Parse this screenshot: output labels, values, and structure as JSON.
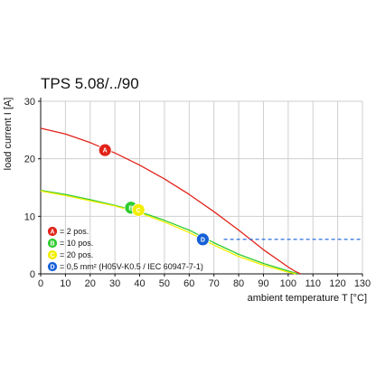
{
  "chart_data": {
    "type": "line",
    "title": "TPS 5.08/../90",
    "xlabel": "ambient temperature T [°C]",
    "ylabel": "load current I [A]",
    "xlim": [
      0,
      130
    ],
    "ylim": [
      0,
      30
    ],
    "xticks": [
      0,
      10,
      20,
      30,
      40,
      50,
      60,
      70,
      80,
      90,
      100,
      110,
      120,
      130
    ],
    "yticks": [
      0,
      10,
      20,
      30
    ],
    "grid": true,
    "series": [
      {
        "name": "2 pos.",
        "marker": "A",
        "color": "#e2231a",
        "x": [
          0,
          10,
          20,
          30,
          40,
          50,
          60,
          70,
          80,
          90,
          100,
          103,
          105
        ],
        "y": [
          25.3,
          24.3,
          22.8,
          21.0,
          18.9,
          16.5,
          13.8,
          10.8,
          7.6,
          4.2,
          1.2,
          0.4,
          0
        ]
      },
      {
        "name": "10 pos.",
        "marker": "B",
        "color": "#2ecc2e",
        "x": [
          0,
          10,
          20,
          30,
          40,
          50,
          60,
          70,
          80,
          90,
          100,
          104
        ],
        "y": [
          14.5,
          13.8,
          12.9,
          11.9,
          10.8,
          9.3,
          7.6,
          5.4,
          3.4,
          1.8,
          0.5,
          0
        ]
      },
      {
        "name": "20 pos.",
        "marker": "C",
        "color": "#f3ee00",
        "x": [
          0,
          10,
          20,
          30,
          40,
          50,
          60,
          70,
          80,
          90,
          100,
          103
        ],
        "y": [
          14.4,
          13.6,
          12.7,
          11.8,
          10.6,
          9.0,
          7.2,
          5.0,
          3.0,
          1.5,
          0.3,
          0
        ]
      },
      {
        "name": "0,5 mm² (H05V-K0.5 / IEC 60947-7-1)",
        "marker": "D",
        "color": "#1560d8",
        "style": "dashed",
        "x": [
          74,
          130
        ],
        "y": [
          6,
          6
        ]
      }
    ],
    "markers": [
      {
        "label": "A",
        "color": "#e2231a",
        "x": 26,
        "y": 21.5
      },
      {
        "label": "B",
        "color": "#2ecc2e",
        "x": 36.5,
        "y": 11.5
      },
      {
        "label": "C",
        "color": "#f3ee00",
        "x": 39.5,
        "y": 11.1
      },
      {
        "label": "D",
        "color": "#1560d8",
        "x": 65.5,
        "y": 6
      }
    ],
    "legend": {
      "placement": "bottom-left",
      "entries": [
        {
          "marker": "A",
          "color": "#e2231a",
          "text": "= 2 pos."
        },
        {
          "marker": "B",
          "color": "#2ecc2e",
          "text": "= 10 pos."
        },
        {
          "marker": "C",
          "color": "#f3ee00",
          "text": "= 20 pos."
        },
        {
          "marker": "D",
          "color": "#1560d8",
          "text": "= 0,5 mm² (H05V-K0.5 / IEC 60947-7-1)"
        }
      ]
    }
  }
}
